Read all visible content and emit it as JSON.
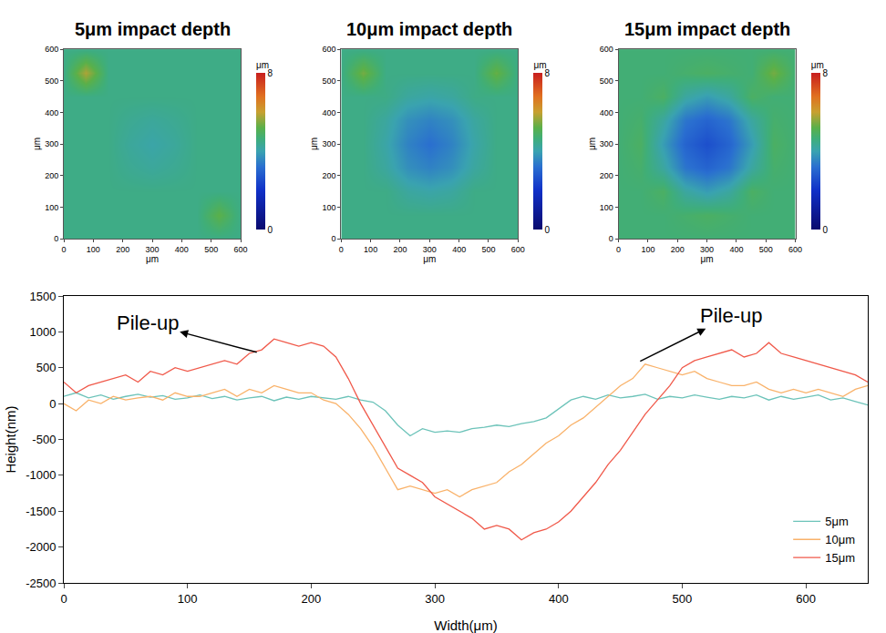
{
  "chart_data": [
    {
      "type": "heatmap",
      "title": "5μm impact depth",
      "x": [
        0,
        75,
        150,
        225,
        300,
        375,
        450,
        525,
        600
      ],
      "y": [
        0,
        75,
        150,
        225,
        300,
        375,
        450,
        525,
        600
      ],
      "cells": [
        [
          4.5,
          4.5,
          4.5,
          4.5,
          4.5,
          4.5,
          4.5,
          4.5,
          4.5
        ],
        [
          4.5,
          4.5,
          4.5,
          4.5,
          4.5,
          4.5,
          4.5,
          5.2,
          4.5
        ],
        [
          4.5,
          4.5,
          4.5,
          4.5,
          4.5,
          4.5,
          4.5,
          4.5,
          4.5
        ],
        [
          4.5,
          4.5,
          4.5,
          4.35,
          4.25,
          4.35,
          4.5,
          4.5,
          4.5
        ],
        [
          4.5,
          4.5,
          4.5,
          4.25,
          4.1,
          4.25,
          4.5,
          4.5,
          4.5
        ],
        [
          4.5,
          4.5,
          4.5,
          4.35,
          4.25,
          4.35,
          4.5,
          4.5,
          4.5
        ],
        [
          4.5,
          4.5,
          4.5,
          4.5,
          4.5,
          4.5,
          4.5,
          4.5,
          4.5
        ],
        [
          4.5,
          5.8,
          4.5,
          4.5,
          4.5,
          4.5,
          4.5,
          4.5,
          4.5
        ],
        [
          4.5,
          4.5,
          4.5,
          4.5,
          4.5,
          4.5,
          4.5,
          4.5,
          4.5
        ]
      ],
      "xlim": [
        0,
        600
      ],
      "ylim": [
        0,
        600
      ],
      "xticks": [
        0,
        100,
        200,
        300,
        400,
        500,
        600
      ],
      "yticks": [
        0,
        100,
        200,
        300,
        400,
        500,
        600
      ],
      "x_label": "μm",
      "y_label": "μm",
      "zlim": [
        0,
        8
      ],
      "zticks": [
        0,
        8
      ],
      "z_label": "μm"
    },
    {
      "type": "heatmap",
      "title": "10μm impact depth",
      "x": [
        0,
        75,
        150,
        225,
        300,
        375,
        450,
        525,
        600
      ],
      "y": [
        0,
        75,
        150,
        225,
        300,
        375,
        450,
        525,
        600
      ],
      "cells": [
        [
          4.5,
          4.5,
          4.5,
          4.5,
          4.5,
          4.5,
          4.5,
          4.5,
          4.5
        ],
        [
          4.5,
          4.5,
          4.5,
          4.5,
          4.5,
          4.5,
          4.5,
          4.5,
          4.5
        ],
        [
          4.5,
          4.5,
          4.5,
          4.2,
          4.1,
          4.2,
          4.5,
          4.5,
          4.5
        ],
        [
          4.5,
          4.5,
          4.2,
          3.7,
          3.5,
          3.7,
          4.2,
          4.5,
          4.5
        ],
        [
          4.5,
          4.5,
          4.1,
          3.5,
          3.2,
          3.5,
          4.1,
          4.5,
          4.5
        ],
        [
          4.5,
          4.5,
          4.2,
          3.7,
          3.5,
          3.7,
          4.2,
          4.5,
          4.5
        ],
        [
          4.5,
          4.5,
          4.5,
          4.2,
          4.1,
          4.2,
          4.5,
          4.5,
          4.5
        ],
        [
          4.5,
          5.4,
          4.5,
          4.5,
          4.5,
          4.5,
          4.5,
          5.3,
          4.5
        ],
        [
          4.5,
          4.5,
          4.5,
          4.5,
          4.5,
          4.5,
          4.5,
          4.5,
          4.5
        ]
      ],
      "xlim": [
        0,
        600
      ],
      "ylim": [
        0,
        600
      ],
      "xticks": [
        0,
        100,
        200,
        300,
        400,
        500,
        600
      ],
      "yticks": [
        0,
        100,
        200,
        300,
        400,
        500,
        600
      ],
      "x_label": "μm",
      "y_label": "μm",
      "zlim": [
        0,
        8
      ],
      "zticks": [
        0,
        8
      ],
      "z_label": "μm"
    },
    {
      "type": "heatmap",
      "title": "15μm impact depth",
      "x": [
        0,
        75,
        150,
        225,
        300,
        375,
        450,
        525,
        600
      ],
      "y": [
        0,
        75,
        150,
        225,
        300,
        375,
        450,
        525,
        600
      ],
      "cells": [
        [
          4.7,
          4.7,
          4.7,
          4.7,
          4.7,
          4.7,
          4.7,
          4.7,
          4.7
        ],
        [
          4.7,
          4.7,
          4.7,
          4.8,
          4.9,
          4.8,
          4.7,
          4.7,
          4.7
        ],
        [
          4.7,
          4.7,
          4.9,
          4.2,
          3.9,
          4.2,
          4.9,
          4.7,
          4.7
        ],
        [
          4.7,
          4.8,
          4.2,
          3.3,
          3.0,
          3.3,
          4.2,
          4.8,
          4.7
        ],
        [
          4.7,
          4.9,
          3.9,
          3.0,
          2.6,
          3.0,
          3.9,
          4.9,
          4.7
        ],
        [
          4.7,
          4.8,
          4.2,
          3.3,
          3.0,
          3.3,
          4.2,
          4.8,
          4.7
        ],
        [
          4.7,
          4.7,
          4.9,
          4.2,
          3.9,
          4.2,
          4.9,
          4.7,
          4.7
        ],
        [
          4.7,
          4.7,
          4.7,
          4.8,
          4.9,
          4.8,
          4.7,
          5.4,
          4.7
        ],
        [
          4.7,
          4.7,
          4.7,
          4.7,
          4.7,
          4.7,
          4.7,
          4.7,
          4.7
        ]
      ],
      "xlim": [
        0,
        600
      ],
      "ylim": [
        0,
        600
      ],
      "xticks": [
        0,
        100,
        200,
        300,
        400,
        500,
        600
      ],
      "yticks": [
        0,
        100,
        200,
        300,
        400,
        500,
        600
      ],
      "x_label": "μm",
      "y_label": "μm",
      "zlim": [
        0,
        8
      ],
      "zticks": [
        0,
        8
      ],
      "z_label": "μm"
    },
    {
      "type": "line",
      "x_label": "Width(μm)",
      "y_label": "Height(nm)",
      "x": [
        0,
        10,
        20,
        30,
        40,
        50,
        60,
        70,
        80,
        90,
        100,
        110,
        120,
        130,
        140,
        150,
        160,
        170,
        180,
        190,
        200,
        210,
        220,
        230,
        240,
        250,
        260,
        270,
        280,
        290,
        300,
        310,
        320,
        330,
        340,
        350,
        360,
        370,
        380,
        390,
        400,
        410,
        420,
        430,
        440,
        450,
        460,
        470,
        480,
        490,
        500,
        510,
        520,
        530,
        540,
        550,
        560,
        570,
        580,
        590,
        600,
        610,
        620,
        630,
        640,
        650
      ],
      "series": [
        {
          "name": "5μm",
          "color": "#6cc3b9",
          "values": [
            100,
            150,
            80,
            120,
            60,
            100,
            130,
            90,
            110,
            60,
            80,
            120,
            70,
            100,
            50,
            80,
            100,
            40,
            90,
            60,
            100,
            80,
            60,
            100,
            50,
            20,
            -100,
            -300,
            -450,
            -350,
            -400,
            -380,
            -400,
            -350,
            -330,
            -300,
            -320,
            -280,
            -250,
            -200,
            -80,
            50,
            100,
            60,
            120,
            80,
            100,
            130,
            60,
            100,
            80,
            120,
            90,
            60,
            100,
            80,
            120,
            50,
            100,
            60,
            90,
            120,
            50,
            80,
            30,
            -20
          ]
        },
        {
          "name": "10μm",
          "color": "#f9b26a",
          "values": [
            0,
            -100,
            50,
            0,
            100,
            50,
            80,
            100,
            50,
            150,
            100,
            100,
            150,
            200,
            100,
            200,
            150,
            250,
            200,
            150,
            150,
            50,
            0,
            -150,
            -350,
            -600,
            -900,
            -1200,
            -1150,
            -1200,
            -1250,
            -1200,
            -1300,
            -1200,
            -1150,
            -1100,
            -950,
            -850,
            -700,
            -550,
            -450,
            -300,
            -200,
            -50,
            100,
            250,
            350,
            550,
            500,
            450,
            400,
            450,
            350,
            300,
            250,
            250,
            300,
            200,
            150,
            200,
            150,
            200,
            150,
            100,
            200,
            250
          ]
        },
        {
          "name": "15μm",
          "color": "#f0594a",
          "values": [
            300,
            150,
            250,
            300,
            350,
            400,
            300,
            450,
            400,
            500,
            450,
            500,
            550,
            600,
            550,
            700,
            750,
            900,
            850,
            800,
            850,
            800,
            650,
            350,
            0,
            -300,
            -600,
            -900,
            -1000,
            -1100,
            -1300,
            -1400,
            -1500,
            -1600,
            -1750,
            -1700,
            -1750,
            -1900,
            -1800,
            -1750,
            -1650,
            -1500,
            -1300,
            -1100,
            -850,
            -650,
            -400,
            -150,
            50,
            250,
            500,
            600,
            650,
            700,
            750,
            650,
            700,
            850,
            700,
            650,
            600,
            550,
            500,
            450,
            400,
            300
          ]
        }
      ],
      "xlim": [
        0,
        650
      ],
      "ylim": [
        -2500,
        1500
      ],
      "xticks": [
        0,
        100,
        200,
        300,
        400,
        500,
        600
      ],
      "yticks": [
        -2500,
        -2000,
        -1500,
        -1000,
        -500,
        0,
        500,
        1000,
        1500
      ],
      "grid": false,
      "legend": "bottom right",
      "annotations": [
        {
          "text": "Pile-up",
          "x": 156,
          "y": 715
        },
        {
          "text": "Pile-up",
          "x": 466,
          "y": 590
        }
      ]
    }
  ]
}
